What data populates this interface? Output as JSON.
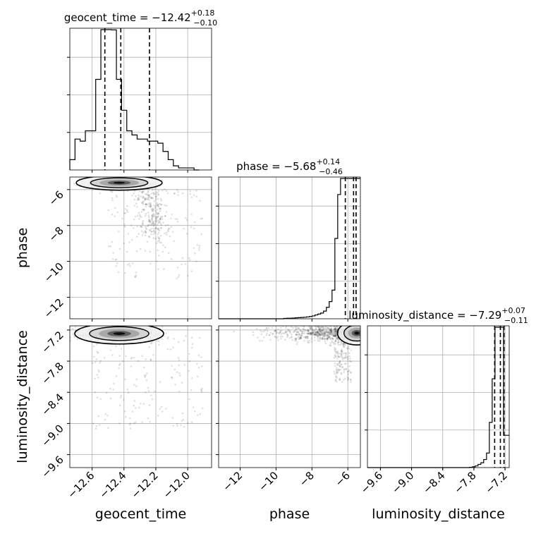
{
  "chart_data": {
    "type": "corner",
    "parameters": [
      "geocent_time",
      "phase",
      "luminosity_distance"
    ],
    "titles": [
      {
        "param": "geocent_time",
        "prefix": "geocent_time = ",
        "median": "−12.42",
        "plus": "+0.18",
        "minus": "−0.10"
      },
      {
        "param": "phase",
        "prefix": "phase = ",
        "median": "−5.68",
        "plus": "+0.14",
        "minus": "−0.46"
      },
      {
        "param": "luminosity_distance",
        "prefix": "luminosity_distance = ",
        "median": "−7.29",
        "plus": "+0.07",
        "minus": "−0.11"
      }
    ],
    "axis_labels": {
      "geocent_time": "geocent_time",
      "phase": "phase",
      "luminosity_distance": "luminosity_distance"
    },
    "ranges": {
      "geocent_time": [
        -12.74,
        -11.85
      ],
      "phase": [
        -13.2,
        -5.3
      ],
      "luminosity_distance": [
        -9.85,
        -7.12
      ]
    },
    "ticks": {
      "geocent_time": [
        -12.6,
        -12.4,
        -12.2,
        -12.0
      ],
      "phase": [
        -12,
        -10,
        -8,
        -6
      ],
      "luminosity_distance": [
        -9.6,
        -9.0,
        -8.4,
        -7.8,
        -7.2
      ]
    },
    "tick_labels": {
      "geocent_time": [
        "−12.6",
        "−12.4",
        "−12.2",
        "−12.0"
      ],
      "phase": [
        "−12",
        "−10",
        "−8",
        "−6"
      ],
      "luminosity_distance": [
        "−9.6",
        "−9.0",
        "−8.4",
        "−7.8",
        "−7.2"
      ]
    },
    "quantiles": {
      "geocent_time": [
        -12.52,
        -12.42,
        -12.24
      ],
      "phase": [
        -6.14,
        -5.68,
        -5.54
      ],
      "luminosity_distance": [
        -7.4,
        -7.29,
        -7.22
      ]
    },
    "hist_1d": {
      "geocent_time": {
        "edges_start": -12.74,
        "bin_width": 0.0325,
        "counts": [
          0.05,
          0.15,
          0.14,
          0.19,
          0.19,
          0.44,
          0.73,
          0.73,
          0.68,
          0.44,
          0.29,
          0.19,
          0.17,
          0.15,
          0.15,
          0.14,
          0.14,
          0.13,
          0.09,
          0.05,
          0.02,
          0.01,
          0.01,
          0.01,
          0
        ]
      },
      "phase": {
        "edges_start": -13.2,
        "bin_width": 0.158,
        "counts": [
          0,
          0,
          0,
          0,
          0,
          0,
          0,
          0,
          0,
          0,
          0,
          0,
          0,
          0,
          0,
          0,
          0,
          0,
          0,
          0,
          0,
          0,
          0,
          0.002,
          0.003,
          0.003,
          0.004,
          0.005,
          0.006,
          0.007,
          0.008,
          0.01,
          0.012,
          0.015,
          0.02,
          0.025,
          0.03,
          0.04,
          0.06,
          0.09,
          0.15,
          0.42,
          0.65,
          0.8,
          0.82,
          0.82,
          0.82,
          0.82,
          0.82,
          0.82
        ]
      },
      "luminosity_distance": {
        "edges_start": -9.85,
        "bin_width": 0.0546,
        "counts": [
          0,
          0,
          0,
          0,
          0,
          0,
          0,
          0,
          0,
          0,
          0,
          0,
          0,
          0,
          0,
          0,
          0,
          0,
          0,
          0,
          0,
          0,
          0,
          0,
          0,
          0,
          0,
          0,
          0,
          0,
          0,
          0,
          0,
          0,
          0,
          0,
          0.002,
          0.005,
          0.01,
          0.02,
          0.03,
          0.05,
          0.09,
          0.28,
          0.55,
          0.95,
          0.95,
          0.95,
          0.2,
          0.2
        ]
      }
    },
    "grid": true
  }
}
